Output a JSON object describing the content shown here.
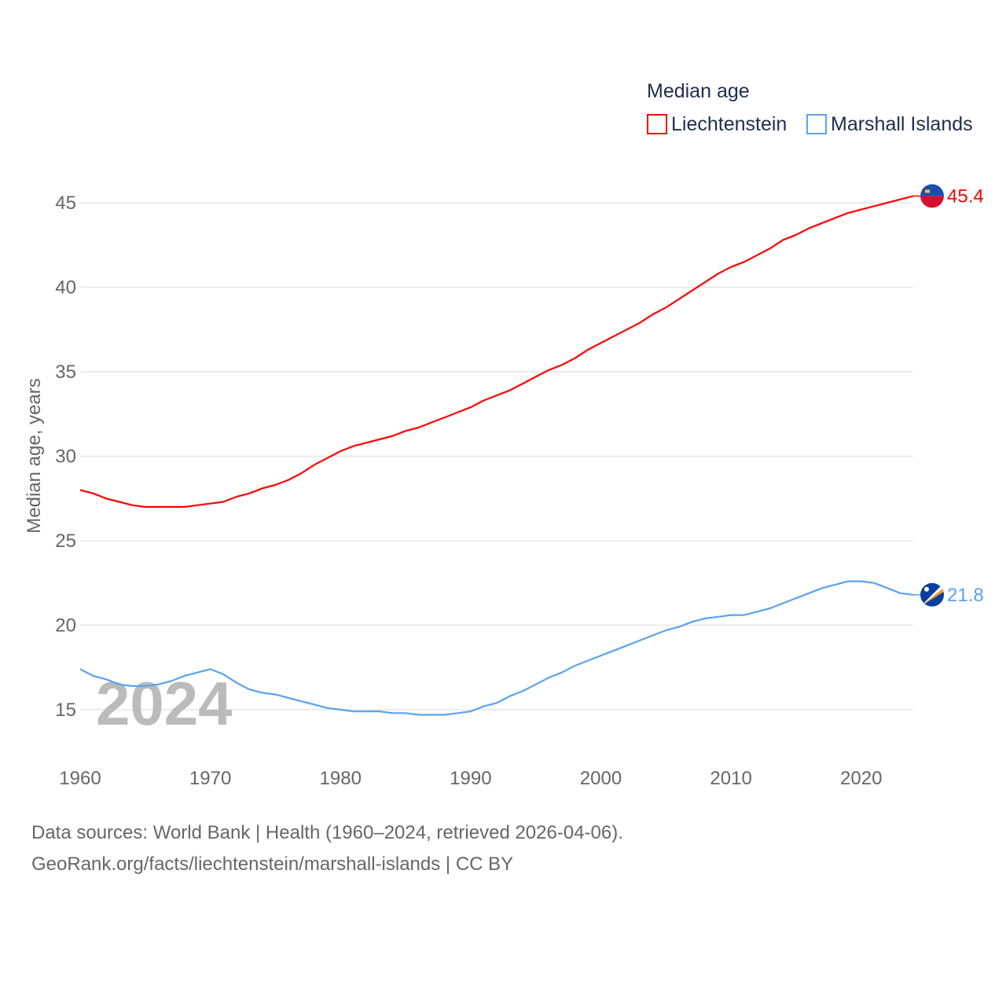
{
  "chart_data": {
    "type": "line",
    "title": "",
    "legend_title": "Median age",
    "legend_placement": "top-right",
    "xlabel": "",
    "ylabel": "Median age, years",
    "xlim": [
      1960,
      2024
    ],
    "ylim": [
      12.5,
      47
    ],
    "x_ticks": [
      1960,
      1970,
      1980,
      1990,
      2000,
      2010,
      2020
    ],
    "y_ticks": [
      15,
      20,
      25,
      30,
      35,
      40,
      45
    ],
    "grid": true,
    "year_watermark": "2024",
    "x": [
      1960,
      1961,
      1962,
      1963,
      1964,
      1965,
      1966,
      1967,
      1968,
      1969,
      1970,
      1971,
      1972,
      1973,
      1974,
      1975,
      1976,
      1977,
      1978,
      1979,
      1980,
      1981,
      1982,
      1983,
      1984,
      1985,
      1986,
      1987,
      1988,
      1989,
      1990,
      1991,
      1992,
      1993,
      1994,
      1995,
      1996,
      1997,
      1998,
      1999,
      2000,
      2001,
      2002,
      2003,
      2004,
      2005,
      2006,
      2007,
      2008,
      2009,
      2010,
      2011,
      2012,
      2013,
      2014,
      2015,
      2016,
      2017,
      2018,
      2019,
      2020,
      2021,
      2022,
      2023,
      2024
    ],
    "series": [
      {
        "name": "Liechtenstein",
        "color": "#ff0000",
        "end_label": "45.4",
        "flag": "liechtenstein-flag",
        "values": [
          28.0,
          27.8,
          27.5,
          27.3,
          27.1,
          27.0,
          27.0,
          27.0,
          27.0,
          27.1,
          27.2,
          27.3,
          27.6,
          27.8,
          28.1,
          28.3,
          28.6,
          29.0,
          29.5,
          29.9,
          30.3,
          30.6,
          30.8,
          31.0,
          31.2,
          31.5,
          31.7,
          32.0,
          32.3,
          32.6,
          32.9,
          33.3,
          33.6,
          33.9,
          34.3,
          34.7,
          35.1,
          35.4,
          35.8,
          36.3,
          36.7,
          37.1,
          37.5,
          37.9,
          38.4,
          38.8,
          39.3,
          39.8,
          40.3,
          40.8,
          41.2,
          41.5,
          41.9,
          42.3,
          42.8,
          43.1,
          43.5,
          43.8,
          44.1,
          44.4,
          44.6,
          44.8,
          45.0,
          45.2,
          45.4
        ]
      },
      {
        "name": "Marshall Islands",
        "color": "#5ba3ec",
        "end_label": "21.8",
        "flag": "marshall-islands-flag",
        "values": [
          17.4,
          17.0,
          16.8,
          16.5,
          16.4,
          16.4,
          16.5,
          16.7,
          17.0,
          17.2,
          17.4,
          17.1,
          16.6,
          16.2,
          16.0,
          15.9,
          15.7,
          15.5,
          15.3,
          15.1,
          15.0,
          14.9,
          14.9,
          14.9,
          14.8,
          14.8,
          14.7,
          14.7,
          14.7,
          14.8,
          14.9,
          15.2,
          15.4,
          15.8,
          16.1,
          16.5,
          16.9,
          17.2,
          17.6,
          17.9,
          18.2,
          18.5,
          18.8,
          19.1,
          19.4,
          19.7,
          19.9,
          20.2,
          20.4,
          20.5,
          20.6,
          20.6,
          20.8,
          21.0,
          21.3,
          21.6,
          21.9,
          22.2,
          22.4,
          22.6,
          22.6,
          22.5,
          22.2,
          21.9,
          21.8
        ]
      }
    ]
  },
  "footer": {
    "source_line": "Data sources: World Bank | Health (1960–2024, retrieved 2026-04-06).",
    "credit_line": "GeoRank.org/facts/liechtenstein/marshall-islands | CC BY"
  }
}
